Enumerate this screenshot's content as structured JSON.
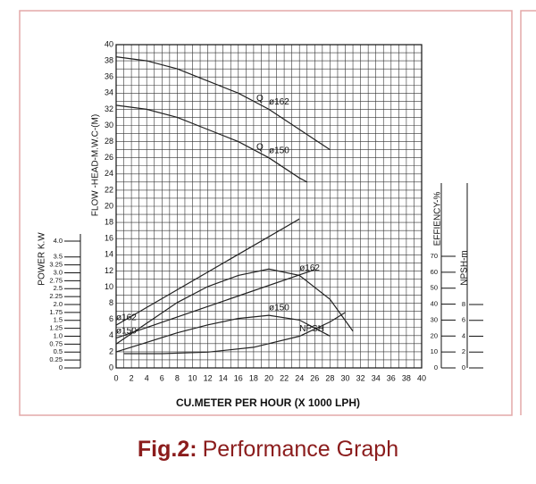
{
  "chart_data": {
    "type": "line",
    "x_label": "CU.METER PER HOUR (X 1000 LPH)",
    "xlim": [
      0,
      40
    ],
    "xticks": [
      0,
      2,
      4,
      6,
      8,
      10,
      12,
      14,
      16,
      18,
      20,
      22,
      24,
      26,
      28,
      30,
      32,
      34,
      36,
      38,
      40
    ],
    "grid": true,
    "xgrid": [
      0,
      1,
      2,
      3,
      4,
      5,
      6,
      7,
      8,
      9,
      10,
      11,
      12,
      13,
      14,
      15,
      16,
      17,
      18,
      19,
      20,
      21,
      22,
      23,
      24,
      25,
      26,
      27,
      28,
      29,
      30,
      31,
      32,
      33,
      34,
      35,
      36,
      37,
      38,
      39,
      40
    ],
    "ygrid": [
      0,
      1,
      2,
      3,
      4,
      5,
      6,
      7,
      8,
      9,
      10,
      11,
      12,
      13,
      14,
      15,
      16,
      17,
      18,
      19,
      20,
      21,
      22,
      23,
      24,
      25,
      26,
      27,
      28,
      29,
      30,
      31,
      32,
      33,
      34,
      35,
      36,
      37,
      38,
      39,
      40
    ],
    "head_curve_symbol": "Q",
    "axes": {
      "head": {
        "label": "FLOW -HEAD-M.W.C-(M)",
        "ylim": [
          0,
          40
        ],
        "yticks": [
          0,
          2,
          4,
          6,
          8,
          10,
          12,
          14,
          16,
          18,
          20,
          22,
          24,
          26,
          28,
          30,
          32,
          34,
          36,
          38,
          40
        ]
      },
      "power": {
        "label": "POWER K.W",
        "ylim": [
          0,
          4
        ],
        "yticks": [
          0,
          0.25,
          0.5,
          0.75,
          {
            "value": 1,
            "label": "1.0"
          },
          1.25,
          1.5,
          1.75,
          {
            "value": 2,
            "label": "2.0"
          },
          2.25,
          2.5,
          2.75,
          {
            "value": 3,
            "label": "3.0"
          },
          3.25,
          3.5,
          {
            "value": 4,
            "label": "4.0"
          }
        ]
      },
      "efficiency": {
        "label": "EFFIENCY-%",
        "ylim": [
          0,
          70
        ],
        "yticks": [
          0,
          10,
          20,
          30,
          40,
          50,
          60,
          70
        ]
      },
      "npsh": {
        "label": "NPSH-m",
        "ylim": [
          0,
          8
        ],
        "yticks": [
          0,
          2,
          4,
          6,
          8
        ]
      }
    },
    "series": [
      {
        "name": "ø162",
        "axis": "head",
        "color": "#222222",
        "x": [
          0,
          4,
          8,
          12,
          16,
          20,
          24,
          28
        ],
        "values": [
          38.5,
          38,
          37,
          35.5,
          34,
          32,
          29.5,
          27
        ]
      },
      {
        "name": "ø150",
        "axis": "head",
        "color": "#222222",
        "x": [
          0,
          4,
          8,
          12,
          16,
          20,
          24,
          25
        ],
        "values": [
          32.5,
          32,
          31,
          29.5,
          28,
          26,
          23.5,
          23
        ]
      },
      {
        "name": "ø162",
        "axis": "power",
        "color": "#222222",
        "x": [
          0,
          24
        ],
        "values": [
          1.35,
          4.7
        ]
      },
      {
        "name": "ø150",
        "axis": "power",
        "color": "#222222",
        "x": [
          0,
          26
        ],
        "values": [
          0.94,
          3.1
        ]
      },
      {
        "name": "ø162",
        "axis": "efficiency",
        "color": "#222222",
        "x": [
          0,
          4,
          8,
          12,
          16,
          20,
          24,
          28,
          31
        ],
        "values": [
          15,
          28,
          41,
          51,
          58,
          62,
          58,
          43,
          23
        ]
      },
      {
        "name": "ø150",
        "axis": "efficiency",
        "color": "#222222",
        "x": [
          0,
          4,
          8,
          12,
          16,
          20,
          24,
          28
        ],
        "values": [
          10,
          16,
          22,
          27,
          31,
          33,
          30,
          20
        ]
      },
      {
        "name": "NPSH",
        "axis": "npsh",
        "color": "#222222",
        "x": [
          1,
          6,
          12,
          18,
          24,
          28,
          30
        ],
        "values": [
          1.8,
          1.8,
          2.0,
          2.6,
          4.0,
          5.8,
          7.0
        ]
      }
    ]
  },
  "caption": {
    "label": "Fig.2:",
    "text": "Performance Graph"
  }
}
